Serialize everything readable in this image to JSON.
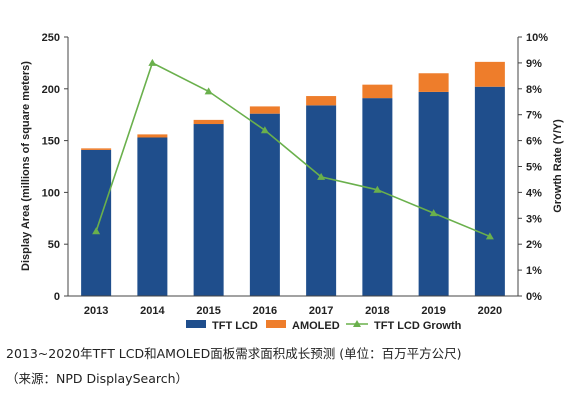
{
  "colors": {
    "tft_lcd": "#1f4e8c",
    "amoled": "#ee7d2b",
    "growth": "#6ab04c",
    "axis": "#444444"
  },
  "caption": {
    "line1": "2013~2020年TFT LCD和AMOLED面板需求面积成长预测 (单位：百万平方公尺)",
    "line2": "（来源：NPD DisplaySearch）"
  },
  "chart_data": {
    "type": "bar",
    "stacked": true,
    "categories": [
      "2013",
      "2014",
      "2015",
      "2016",
      "2017",
      "2018",
      "2019",
      "2020"
    ],
    "series": [
      {
        "name": "TFT LCD",
        "type": "bar",
        "axis": "left",
        "values": [
          141,
          153,
          166,
          176,
          184,
          191,
          197,
          202
        ]
      },
      {
        "name": "AMOLED",
        "type": "bar",
        "axis": "left",
        "values": [
          1.5,
          3,
          4,
          7,
          9,
          13,
          18,
          24
        ]
      },
      {
        "name": "TFT LCD Growth",
        "type": "line",
        "axis": "right",
        "values": [
          2.5,
          9.0,
          7.9,
          6.4,
          4.6,
          4.1,
          3.2,
          2.3
        ]
      }
    ],
    "ylabel": "Display Area (millions of square meters)",
    "y2label": "Growth Rate (Y/Y)",
    "ylim": [
      0,
      250
    ],
    "y_ticks": [
      "0",
      "50",
      "100",
      "150",
      "200",
      "250"
    ],
    "y2lim": [
      0,
      10
    ],
    "y2_ticks": [
      "0%",
      "1%",
      "2%",
      "3%",
      "4%",
      "5%",
      "6%",
      "7%",
      "8%",
      "9%",
      "10%"
    ],
    "grid": false,
    "legend": "bottom"
  }
}
